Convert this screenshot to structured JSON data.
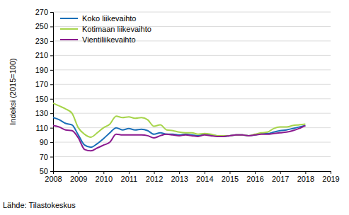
{
  "chart_data": {
    "type": "line",
    "y_label": "Indeksi (2015=100)",
    "source": "Lähde: Tilastokeskus",
    "x": [
      2008,
      2008.25,
      2008.5,
      2008.75,
      2009,
      2009.25,
      2009.5,
      2009.75,
      2010,
      2010.25,
      2010.5,
      2010.75,
      2011,
      2011.25,
      2011.5,
      2011.75,
      2012,
      2012.25,
      2012.5,
      2012.75,
      2013,
      2013.25,
      2013.5,
      2013.75,
      2014,
      2014.25,
      2014.5,
      2014.75,
      2015,
      2015.25,
      2015.5,
      2015.75,
      2016,
      2016.25,
      2016.5,
      2016.75,
      2017,
      2017.25,
      2017.5,
      2017.75,
      2018
    ],
    "series": [
      {
        "name": "Koko liikevaihto",
        "color": "#1a6fb8",
        "values": [
          124,
          121,
          116,
          114,
          100,
          86,
          83,
          88,
          95,
          103,
          110,
          107,
          109,
          107,
          108,
          106,
          101,
          103,
          101,
          101,
          100,
          101,
          100,
          99,
          101,
          100,
          99,
          98,
          99,
          100,
          100,
          99,
          100,
          102,
          102,
          104,
          106,
          107,
          109,
          111,
          113
        ]
      },
      {
        "name": "Kotimaan liikevaihto",
        "color": "#a6d44a",
        "values": [
          144,
          140,
          136,
          130,
          110,
          101,
          97,
          103,
          110,
          115,
          126,
          124,
          125,
          123,
          124,
          121,
          112,
          114,
          107,
          106,
          104,
          103,
          103,
          101,
          102,
          101,
          99,
          99,
          99,
          100,
          100,
          99,
          101,
          103,
          104,
          109,
          111,
          111,
          113,
          114,
          115
        ]
      },
      {
        "name": "Vientiliikevaihto",
        "color": "#8b1a8f",
        "values": [
          113,
          111,
          107,
          106,
          96,
          80,
          78,
          82,
          86,
          90,
          101,
          100,
          100,
          100,
          100,
          99,
          96,
          99,
          101,
          100,
          99,
          100,
          99,
          98,
          100,
          99,
          98,
          98,
          99,
          100,
          100,
          99,
          100,
          101,
          101,
          102,
          103,
          104,
          106,
          109,
          113
        ]
      }
    ],
    "xlim": [
      2008,
      2019
    ],
    "xticks": [
      2008,
      2009,
      2010,
      2011,
      2012,
      2013,
      2014,
      2015,
      2016,
      2017,
      2018,
      2019
    ],
    "ylim": [
      50,
      270
    ],
    "yticks": [
      50,
      70,
      90,
      110,
      130,
      150,
      170,
      190,
      210,
      230,
      250,
      270
    ],
    "grid": true,
    "legend": "top-left"
  }
}
